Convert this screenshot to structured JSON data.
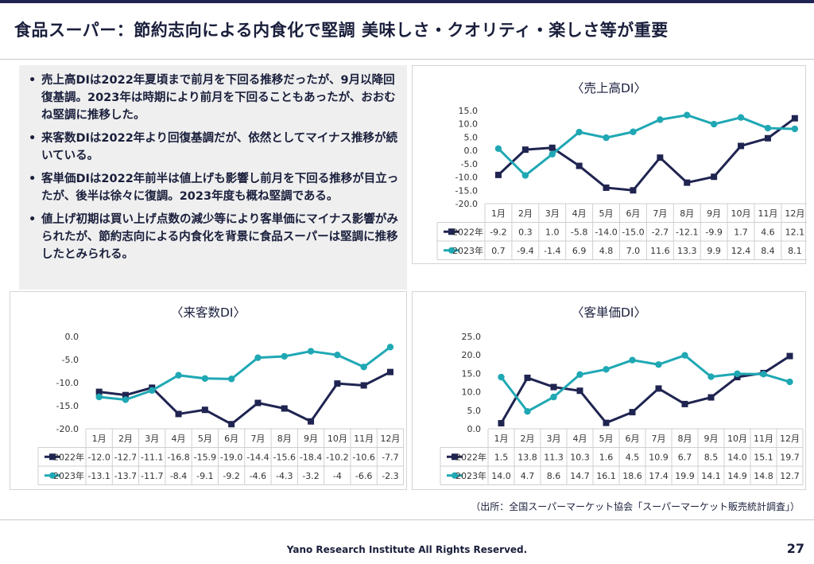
{
  "title": "食品スーパー：節約志向による内食化で堅調 美味しさ・クオリティ・楽しさ等が重要",
  "bullets": [
    "売上高DIは2022年夏頃まで前月を下回る推移だったが、9月以降回復基調。2023年は時期により前月を下回ることもあったが、おおむね堅調に推移した。",
    "来客数DIは2022年より回復基調だが、依然としてマイナス推移が続いている。",
    "客単価DIは2022年前半は値上げも影響し前月を下回る推移が目立ったが、後半は徐々に復調。2023年度も概ね堅調である。",
    "値上げ初期は買い上げ点数の減少等により客単価にマイナス影響がみられたが、節約志向による内食化を背景に食品スーパーは堅調に推移したとみられる。"
  ],
  "chart_data": [
    {
      "id": "sales",
      "type": "line",
      "title": "〈売上高DI〉",
      "categories": [
        "1月",
        "2月",
        "3月",
        "4月",
        "5月",
        "6月",
        "7月",
        "8月",
        "9月",
        "10月",
        "11月",
        "12月"
      ],
      "yticks": [
        "15.0",
        "10.0",
        "5.0",
        "0.0",
        "-5.0",
        "-10.0",
        "-15.0",
        "-20.0"
      ],
      "ylim": [
        -20,
        15
      ],
      "series": [
        {
          "name": "2022年",
          "color": "#1f2451",
          "marker": "square",
          "values": [
            -9.2,
            0.3,
            1.0,
            -5.8,
            -14.0,
            -15.0,
            -2.7,
            -12.1,
            -9.9,
            1.7,
            4.6,
            12.1
          ]
        },
        {
          "name": "2023年",
          "color": "#1fa8b4",
          "marker": "circle",
          "values": [
            0.7,
            -9.4,
            -1.4,
            6.9,
            4.8,
            7.0,
            11.6,
            13.3,
            9.9,
            12.4,
            8.4,
            8.1
          ]
        }
      ],
      "table": [
        [
          "-9.2",
          "0.3",
          "1.0",
          "-5.8",
          "-14.0",
          "-15.0",
          "-2.7",
          "-12.1",
          "-9.9",
          "1.7",
          "4.6",
          "12.1"
        ],
        [
          "0.7",
          "-9.4",
          "-1.4",
          "6.9",
          "4.8",
          "7.0",
          "11.6",
          "13.3",
          "9.9",
          "12.4",
          "8.4",
          "8.1"
        ]
      ]
    },
    {
      "id": "visitors",
      "type": "line",
      "title": "〈来客数DI〉",
      "categories": [
        "1月",
        "2月",
        "3月",
        "4月",
        "5月",
        "6月",
        "7月",
        "8月",
        "9月",
        "10月",
        "11月",
        "12月"
      ],
      "yticks": [
        "0.0",
        "-5.0",
        "-10.0",
        "-15.0",
        "-20.0"
      ],
      "ylim": [
        -20,
        0
      ],
      "series": [
        {
          "name": "2022年",
          "color": "#1f2451",
          "marker": "square",
          "values": [
            -12.0,
            -12.7,
            -11.1,
            -16.8,
            -15.9,
            -19.0,
            -14.4,
            -15.6,
            -18.4,
            -10.2,
            -10.6,
            -7.7
          ]
        },
        {
          "name": "2023年",
          "color": "#1fa8b4",
          "marker": "circle",
          "values": [
            -13.1,
            -13.7,
            -11.7,
            -8.4,
            -9.1,
            -9.2,
            -4.6,
            -4.3,
            -3.2,
            -4,
            -6.6,
            -2.3
          ]
        }
      ],
      "table": [
        [
          "-12.0",
          "-12.7",
          "-11.1",
          "-16.8",
          "-15.9",
          "-19.0",
          "-14.4",
          "-15.6",
          "-18.4",
          "-10.2",
          "-10.6",
          "-7.7"
        ],
        [
          "-13.1",
          "-13.7",
          "-11.7",
          "-8.4",
          "-9.1",
          "-9.2",
          "-4.6",
          "-4.3",
          "-3.2",
          "-4",
          "-6.6",
          "-2.3"
        ]
      ]
    },
    {
      "id": "unitprice",
      "type": "line",
      "title": "〈客単価DI〉",
      "categories": [
        "1月",
        "2月",
        "3月",
        "4月",
        "5月",
        "6月",
        "7月",
        "8月",
        "9月",
        "10月",
        "11月",
        "12月"
      ],
      "yticks": [
        "25.0",
        "20.0",
        "15.0",
        "10.0",
        "5.0",
        "0.0"
      ],
      "ylim": [
        0,
        25
      ],
      "series": [
        {
          "name": "2022年",
          "color": "#1f2451",
          "marker": "square",
          "values": [
            1.5,
            13.8,
            11.3,
            10.3,
            1.6,
            4.5,
            10.9,
            6.7,
            8.5,
            14.0,
            15.1,
            19.7
          ]
        },
        {
          "name": "2023年",
          "color": "#1fa8b4",
          "marker": "circle",
          "values": [
            14.0,
            4.7,
            8.6,
            14.7,
            16.1,
            18.6,
            17.4,
            19.9,
            14.1,
            14.9,
            14.8,
            12.7
          ]
        }
      ],
      "table": [
        [
          "1.5",
          "13.8",
          "11.3",
          "10.3",
          "1.6",
          "4.5",
          "10.9",
          "6.7",
          "8.5",
          "14.0",
          "15.1",
          "19.7"
        ],
        [
          "14.0",
          "4.7",
          "8.6",
          "14.7",
          "16.1",
          "18.6",
          "17.4",
          "19.9",
          "14.1",
          "14.9",
          "14.8",
          "12.7"
        ]
      ]
    }
  ],
  "source": "（出所：全国スーパーマーケット協会「スーパーマーケット販売統計調査」）",
  "footer": "Yano Research Institute All Rights Reserved.",
  "page_number": "27"
}
